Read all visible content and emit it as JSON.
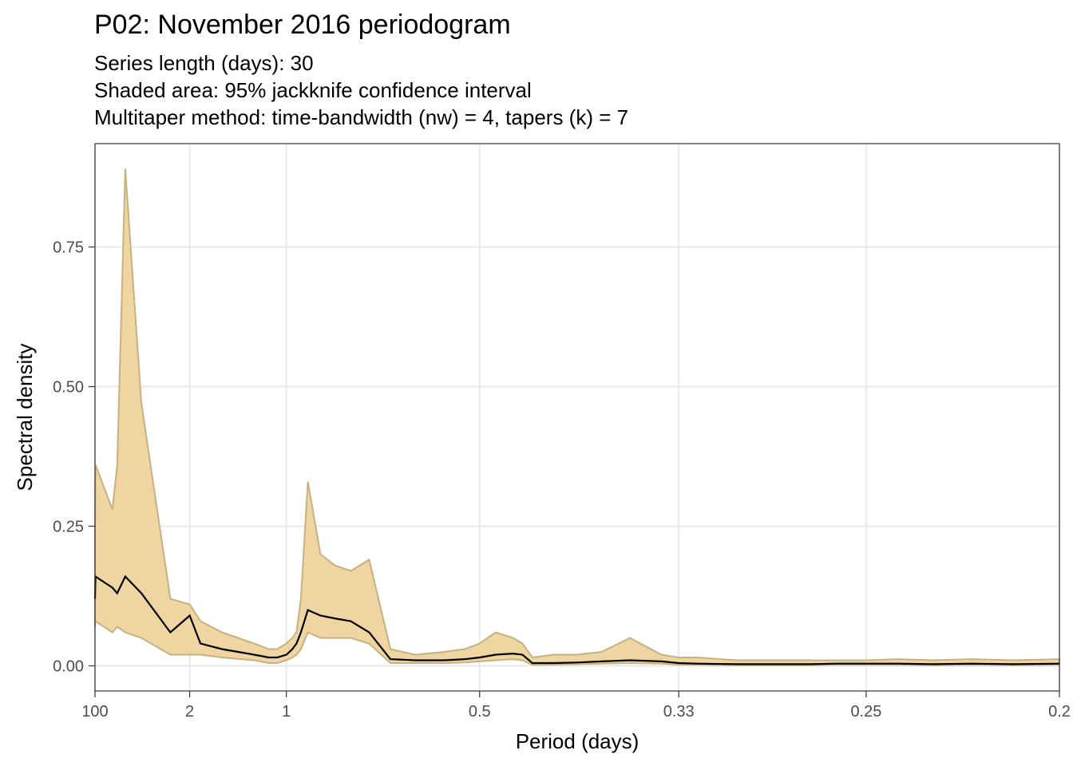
{
  "chart_data": {
    "type": "area",
    "title": "P02: November 2016 periodogram",
    "subtitle_lines": [
      "Series length (days): 30",
      "Shaded area: 95% jackknife confidence interval",
      "Multitaper method: time-bandwidth (nw) = 4, tapers (k) = 7"
    ],
    "xlabel": "Period (days)",
    "ylabel": "Spectral density",
    "x_scale": "reciprocal",
    "x_ticks": [
      {
        "period": 100,
        "label": "100"
      },
      {
        "period": 2,
        "label": "2"
      },
      {
        "period": 1,
        "label": "1"
      },
      {
        "period": 0.5,
        "label": "0.5"
      },
      {
        "period": 0.33,
        "label": "0.33"
      },
      {
        "period": 0.25,
        "label": "0.25"
      },
      {
        "period": 0.2,
        "label": "0.2"
      }
    ],
    "xlim_period": [
      100,
      0.2
    ],
    "y_ticks": [
      {
        "value": 0,
        "label": "0.00"
      },
      {
        "value": 0.25,
        "label": "0.25"
      },
      {
        "value": 0.5,
        "label": "0.50"
      },
      {
        "value": 0.75,
        "label": "0.75"
      }
    ],
    "ylim": [
      -0.045,
      0.935
    ],
    "grid": true,
    "colors": {
      "band_fill": "#efd5a2",
      "band_edge": "#c6b281",
      "line": "#000000",
      "grid": "#ebebeb",
      "panel_border": "#333333"
    },
    "series": [
      {
        "name": "Spectral density",
        "period": [
          100,
          80,
          10,
          8,
          6,
          4,
          2.5,
          2,
          1.8,
          1.5,
          1.2,
          1.1,
          1.05,
          1,
          0.97,
          0.95,
          0.93,
          0.9,
          0.85,
          0.8,
          0.75,
          0.7,
          0.65,
          0.6,
          0.55,
          0.52,
          0.5,
          0.48,
          0.46,
          0.45,
          0.44,
          0.42,
          0.4,
          0.38,
          0.36,
          0.34,
          0.33,
          0.32,
          0.3,
          0.28,
          0.27,
          0.26,
          0.25,
          0.24,
          0.23,
          0.22,
          0.21,
          0.2
        ],
        "density": [
          0.12,
          0.16,
          0.14,
          0.13,
          0.16,
          0.13,
          0.06,
          0.09,
          0.04,
          0.03,
          0.02,
          0.015,
          0.015,
          0.02,
          0.03,
          0.04,
          0.06,
          0.1,
          0.09,
          0.085,
          0.08,
          0.06,
          0.012,
          0.01,
          0.01,
          0.012,
          0.015,
          0.02,
          0.022,
          0.02,
          0.005,
          0.005,
          0.006,
          0.008,
          0.01,
          0.008,
          0.005,
          0.004,
          0.003,
          0.003,
          0.003,
          0.004,
          0.004,
          0.004,
          0.003,
          0.004,
          0.003,
          0.004
        ],
        "upper": [
          0.23,
          0.36,
          0.28,
          0.36,
          0.89,
          0.47,
          0.12,
          0.11,
          0.08,
          0.06,
          0.04,
          0.03,
          0.03,
          0.04,
          0.05,
          0.06,
          0.12,
          0.33,
          0.2,
          0.18,
          0.17,
          0.19,
          0.03,
          0.02,
          0.025,
          0.03,
          0.04,
          0.06,
          0.05,
          0.04,
          0.015,
          0.02,
          0.02,
          0.025,
          0.05,
          0.02,
          0.015,
          0.015,
          0.01,
          0.01,
          0.01,
          0.01,
          0.01,
          0.012,
          0.01,
          0.012,
          0.01,
          0.012
        ],
        "lower": [
          0.07,
          0.08,
          0.06,
          0.07,
          0.06,
          0.05,
          0.02,
          0.02,
          0.02,
          0.015,
          0.01,
          0.005,
          0.005,
          0.01,
          0.015,
          0.02,
          0.03,
          0.06,
          0.05,
          0.05,
          0.05,
          0.04,
          0.005,
          0.005,
          0.005,
          0.006,
          0.008,
          0.01,
          0.012,
          0.01,
          0.002,
          0.002,
          0.003,
          0.004,
          0.005,
          0.004,
          0.002,
          0.002,
          0.001,
          0.001,
          0.001,
          0.002,
          0.002,
          0.002,
          0.001,
          0.002,
          0.001,
          0.002
        ]
      }
    ]
  }
}
